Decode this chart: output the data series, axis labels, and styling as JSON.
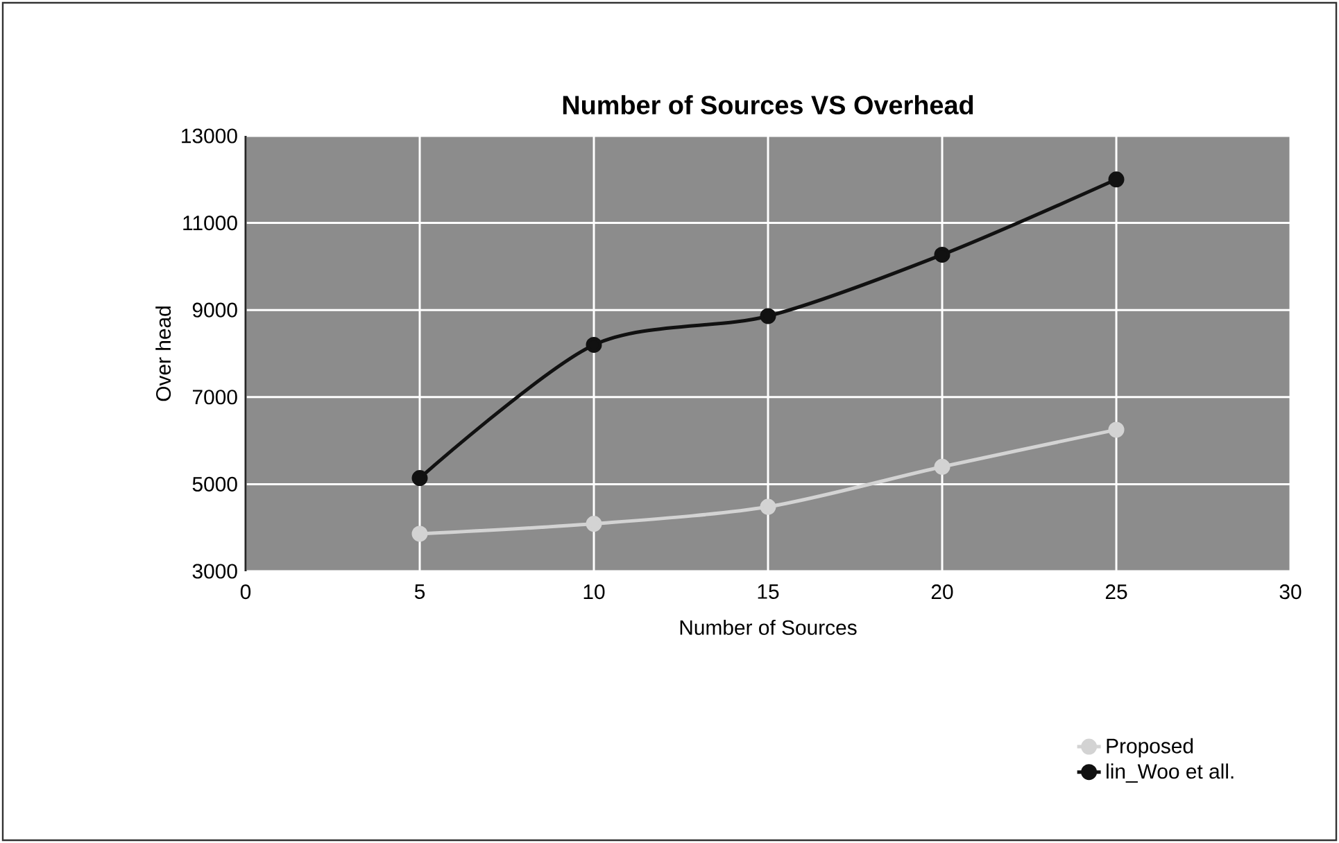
{
  "chart_data": {
    "type": "line",
    "title": "Number of Sources VS Overhead",
    "xlabel": "Number of Sources",
    "ylabel": "Over head",
    "x": [
      5,
      10,
      15,
      20,
      25
    ],
    "series": [
      {
        "name": "Proposed",
        "color": "#d3d3d3",
        "values": [
          3860,
          4090,
          4480,
          5400,
          6250
        ]
      },
      {
        "name": "lin_Woo et all.",
        "color": "#111111",
        "values": [
          5140,
          8200,
          8860,
          10270,
          12000
        ]
      }
    ],
    "xlim": [
      0,
      30
    ],
    "xticks": [
      0,
      5,
      10,
      15,
      20,
      25,
      30
    ],
    "ylim": [
      3000,
      13000
    ],
    "yticks": [
      3000,
      5000,
      7000,
      9000,
      11000,
      13000
    ],
    "grid": true,
    "legend": "bottom right",
    "marker": "circle",
    "line_style": "solid"
  }
}
